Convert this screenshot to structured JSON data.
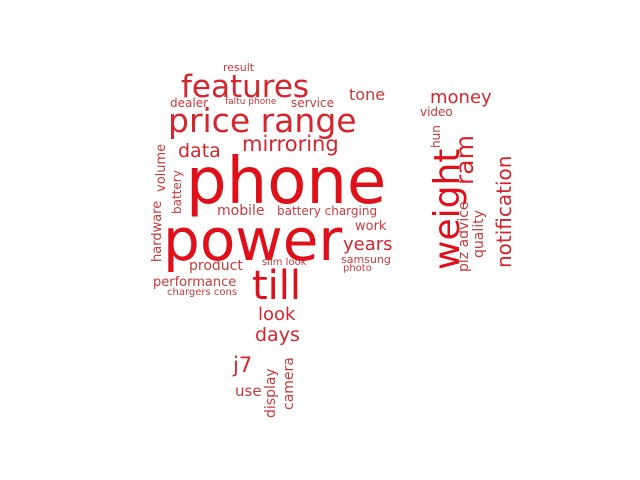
{
  "words": [
    {
      "text": "phone"
    },
    {
      "text": "power"
    },
    {
      "text": "price range"
    },
    {
      "text": "features"
    },
    {
      "text": "till"
    },
    {
      "text": "weight"
    },
    {
      "text": "mirroring"
    },
    {
      "text": "ram"
    },
    {
      "text": "notification"
    },
    {
      "text": "money"
    },
    {
      "text": "data"
    },
    {
      "text": "years"
    },
    {
      "text": "j7"
    },
    {
      "text": "days"
    },
    {
      "text": "look"
    },
    {
      "text": "tone"
    },
    {
      "text": "product"
    },
    {
      "text": "performance"
    },
    {
      "text": "mobile"
    },
    {
      "text": "work"
    },
    {
      "text": "volume"
    },
    {
      "text": "hardware"
    },
    {
      "text": "battery charging"
    },
    {
      "text": "quality"
    },
    {
      "text": "plz advice"
    },
    {
      "text": "video"
    },
    {
      "text": "hun"
    },
    {
      "text": "service"
    },
    {
      "text": "dealer"
    },
    {
      "text": "result"
    },
    {
      "text": "faltu phone"
    },
    {
      "text": "battery"
    },
    {
      "text": "slim look"
    },
    {
      "text": "samsung"
    },
    {
      "text": "photo"
    },
    {
      "text": "chargers cons"
    },
    {
      "text": "camera"
    },
    {
      "text": "display"
    },
    {
      "text": "use"
    }
  ],
  "color": "#e0101a"
}
